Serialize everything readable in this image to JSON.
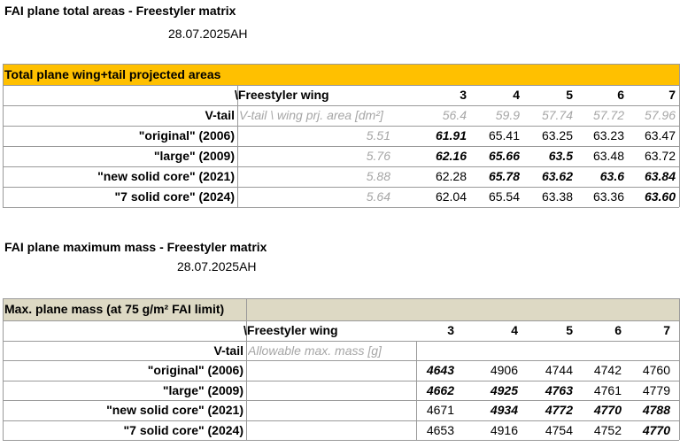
{
  "sections": [
    {
      "title": "FAI plane total areas - Freestyler matrix",
      "date": "28.07.2025AH",
      "header": "Total plane wing+tail projected areas",
      "corner": "\\Freestyler wing",
      "columns": [
        "3",
        "4",
        "5",
        "6",
        "7"
      ],
      "vtail": {
        "label": "V-tail",
        "desc": "V-tail \\ wing prj. area [dm²]",
        "values": [
          "56.4",
          "59.9",
          "57.74",
          "57.72",
          "57.96"
        ]
      },
      "rows": [
        {
          "name": "\"original\" (2006)",
          "tail": "5.51",
          "values": [
            "61.91",
            "65.41",
            "63.25",
            "63.23",
            "63.47"
          ],
          "bold": [
            true,
            false,
            false,
            false,
            false
          ]
        },
        {
          "name": "\"large\" (2009)",
          "tail": "5.76",
          "values": [
            "62.16",
            "65.66",
            "63.5",
            "63.48",
            "63.72"
          ],
          "bold": [
            true,
            true,
            true,
            false,
            false
          ]
        },
        {
          "name": "\"new solid core\" (2021)",
          "tail": "5.88",
          "values": [
            "62.28",
            "65.78",
            "63.62",
            "63.6",
            "63.84"
          ],
          "bold": [
            false,
            true,
            true,
            true,
            true
          ]
        },
        {
          "name": "\"7 solid core\" (2024)",
          "tail": "5.64",
          "values": [
            "62.04",
            "65.54",
            "63.38",
            "63.36",
            "63.60"
          ],
          "bold": [
            false,
            false,
            false,
            false,
            true
          ]
        }
      ]
    },
    {
      "title": "FAI plane maximum mass - Freestyler matrix",
      "date": "28.07.2025AH",
      "header": "Max. plane mass (at 75 g/m² FAI limit)",
      "corner": "\\Freestyler wing",
      "columns": [
        "3",
        "4",
        "5",
        "6",
        "7"
      ],
      "vtail": {
        "label": "V-tail",
        "desc": "Allowable max. mass [g]"
      },
      "rows": [
        {
          "name": "\"original\" (2006)",
          "values": [
            "4643",
            "4906",
            "4744",
            "4742",
            "4760"
          ],
          "bold": [
            true,
            false,
            false,
            false,
            false
          ]
        },
        {
          "name": "\"large\" (2009)",
          "values": [
            "4662",
            "4925",
            "4763",
            "4761",
            "4779"
          ],
          "bold": [
            true,
            true,
            true,
            false,
            false
          ]
        },
        {
          "name": "\"new solid core\" (2021)",
          "values": [
            "4671",
            "4934",
            "4772",
            "4770",
            "4788"
          ],
          "bold": [
            false,
            true,
            true,
            true,
            true
          ]
        },
        {
          "name": "\"7 solid core\" (2024)",
          "values": [
            "4653",
            "4916",
            "4754",
            "4752",
            "4770"
          ],
          "bold": [
            false,
            false,
            false,
            false,
            true
          ]
        }
      ]
    }
  ]
}
